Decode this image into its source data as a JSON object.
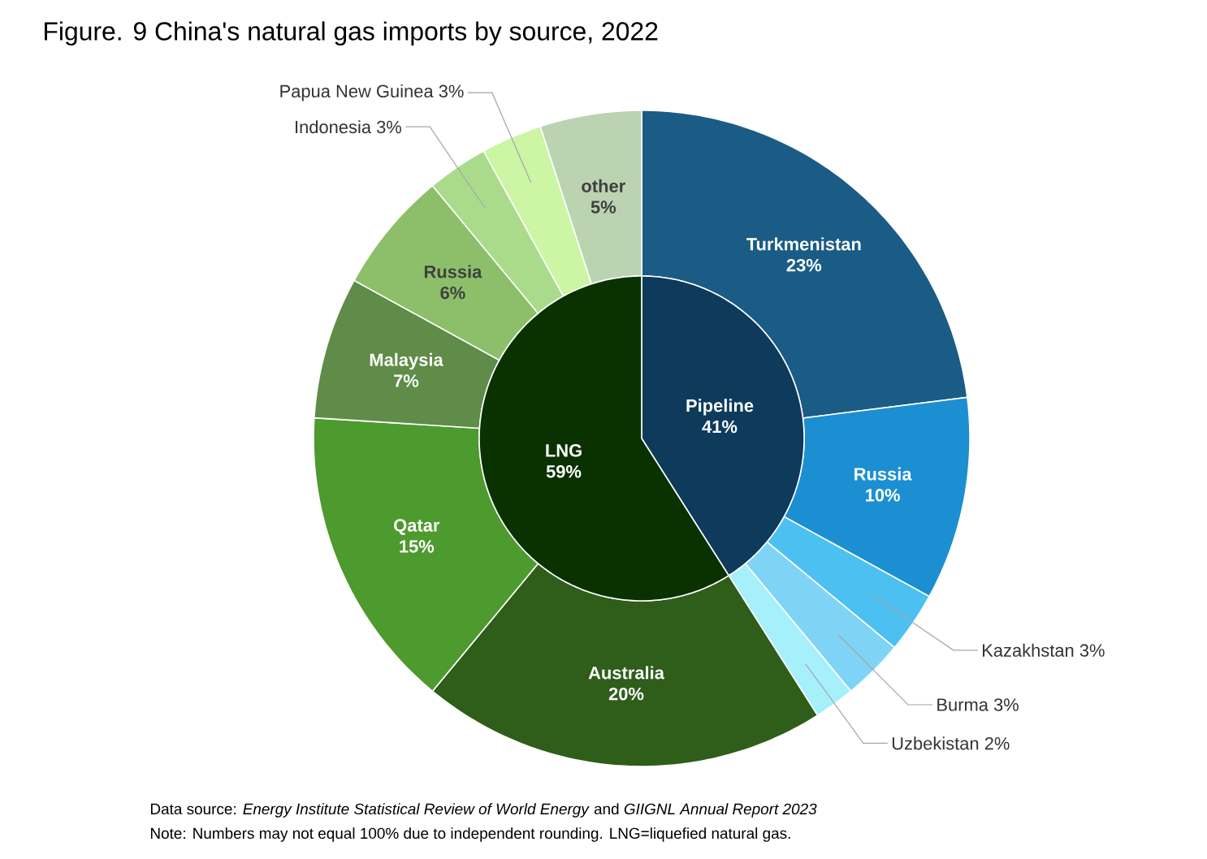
{
  "chart_data": [
    {
      "type": "donut",
      "title": "Figure. 9 China's natural gas imports by source, 2022",
      "annotations": [
        "Data source: *Energy Institute Statistical Review of World Energy* and *GIIGNL Annual Report 2023*",
        "Note: Numbers may not equal 100% due to independent rounding. LNG=liquefied natural gas."
      ],
      "categories": [
        "Turkmenistan",
        "Russia",
        "Kazakhstan",
        "Burma",
        "Uzbekistan",
        "Australia",
        "Qatar",
        "Malaysia",
        "Russia",
        "Indonesia",
        "Papua New Guinea",
        "other"
      ],
      "values": [
        23,
        10,
        3,
        3,
        2,
        20,
        15,
        7,
        6,
        3,
        3,
        5
      ],
      "value_labels": [
        "23%",
        "10%",
        "3%",
        "3%",
        "2%",
        "20%",
        "15%",
        "7%",
        "6%",
        "3%",
        "3%",
        "5%"
      ],
      "colors": [
        "#1a5c85",
        "#1b8fd2",
        "#4cc0f0",
        "#7fd4f5",
        "#a6f0fc",
        "#2f5d1a",
        "#4d9a2e",
        "#5f8c48",
        "#8dbf6a",
        "#aadb8a",
        "#ccf5a4",
        "#bcd3b2"
      ]
    },
    {
      "type": "pie",
      "categories": [
        "Pipeline",
        "LNG"
      ],
      "values": [
        41,
        59
      ],
      "value_labels": [
        "41%",
        "59%"
      ],
      "colors": [
        "#0e3a5c",
        "#0a3200"
      ]
    }
  ]
}
